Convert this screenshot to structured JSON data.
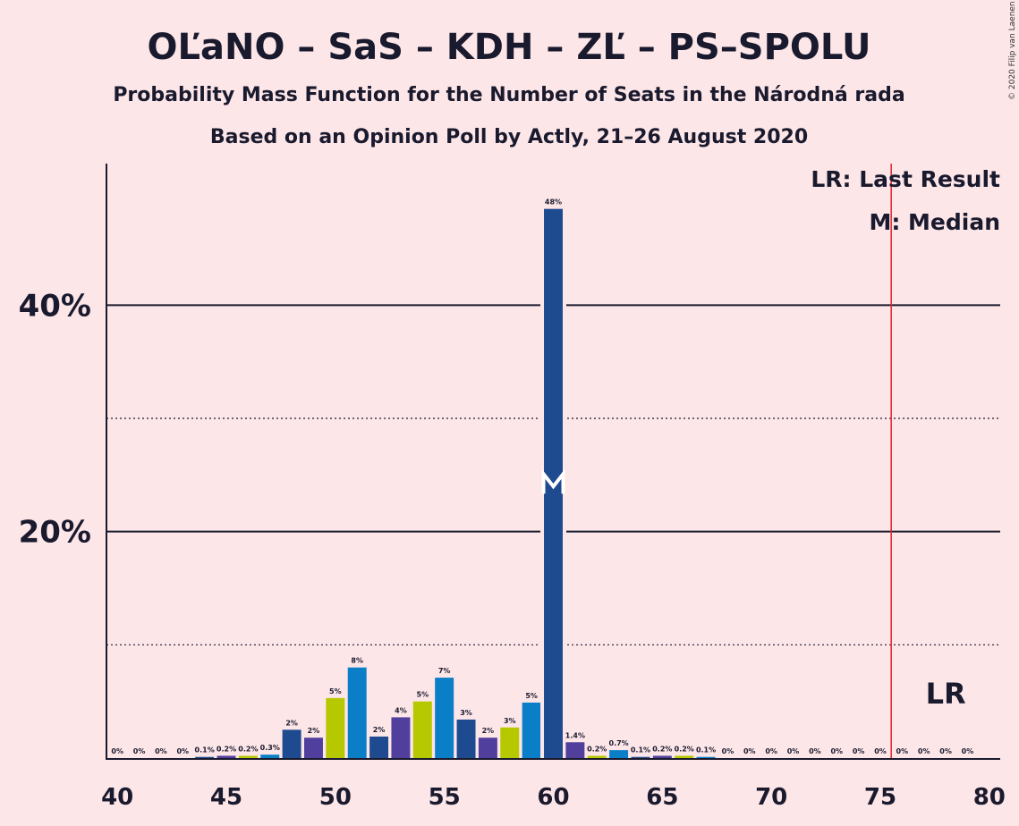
{
  "chart_data": {
    "type": "bar",
    "title": "OĽaNO – SaS – KDH – ZĽ – PS–SPOLU",
    "subtitle1": "Probability Mass Function for the Number of Seats in the Národná rada",
    "subtitle2": "Based on an Opinion Poll by Actly, 21–26 August 2020",
    "copyright": "© 2020 Filip van Laenen",
    "x": [
      40,
      41,
      42,
      43,
      44,
      45,
      46,
      47,
      48,
      49,
      50,
      51,
      52,
      53,
      54,
      55,
      56,
      57,
      58,
      59,
      60,
      61,
      62,
      63,
      64,
      65,
      66,
      67,
      68,
      69,
      70,
      71,
      72,
      73,
      74,
      75,
      76,
      77,
      78,
      79,
      80
    ],
    "values": [
      0,
      0,
      0,
      0,
      0.1,
      0.2,
      0.2,
      0.3,
      2.5,
      1.8,
      5.3,
      8,
      1.9,
      3.6,
      5,
      7.1,
      3.4,
      1.8,
      2.7,
      4.9,
      48.5,
      1.4,
      0.2,
      0.7,
      0.1,
      0.2,
      0.2,
      0.1,
      0,
      0,
      0,
      0,
      0,
      0,
      0,
      0,
      0,
      0,
      0,
      0,
      0
    ],
    "labels": [
      "0%",
      "0%",
      "0%",
      "0%",
      "0.1%",
      "0.2%",
      "0.2%",
      "0.3%",
      "2%",
      "2%",
      "5%",
      "8%",
      "2%",
      "4%",
      "5%",
      "7%",
      "3%",
      "2%",
      "3%",
      "5%",
      "48%",
      "1.4%",
      "0.2%",
      "0.7%",
      "0.1%",
      "0.2%",
      "0.2%",
      "0.1%",
      "0%",
      "0%",
      "0%",
      "0%",
      "0%",
      "0%",
      "0%",
      "0%",
      "0%",
      "0%",
      "0%",
      "0%",
      ""
    ],
    "x_ticks": [
      "40",
      "45",
      "50",
      "55",
      "60",
      "65",
      "70",
      "75",
      "80"
    ],
    "y_ticks": [
      "20%",
      "40%"
    ],
    "ylim": [
      0,
      52.5
    ],
    "xlim": [
      39.5,
      80.5
    ],
    "solid_gridlines": [
      20,
      40
    ],
    "dotted_gridlines": [
      10,
      30
    ],
    "median": 60,
    "median_marker": "M",
    "last_result": 76,
    "last_result_marker": "LR",
    "legend": [
      "LR: Last Result",
      "M: Median"
    ],
    "colors": {
      "background": "#fde6e8",
      "cycle": [
        "#1e4b8f",
        "#513f9e",
        "#b5c800",
        "#0a7fc8"
      ],
      "last_result_line": "#e0232c"
    }
  }
}
